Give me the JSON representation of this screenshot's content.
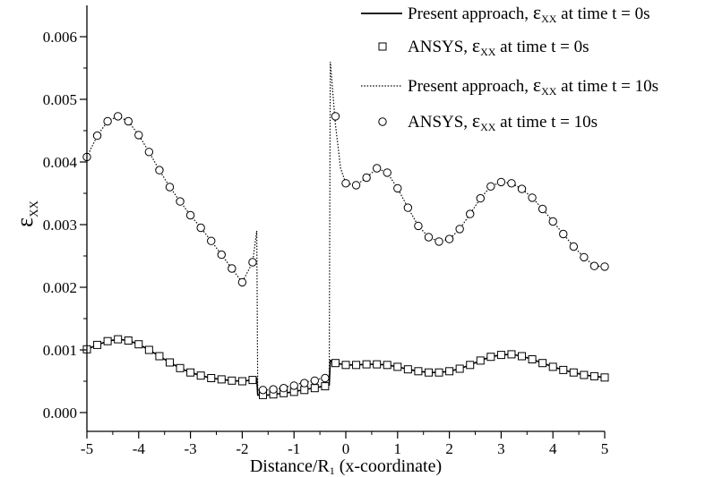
{
  "chart_data": {
    "type": "line",
    "xlabel": "Distance/R",
    "xlabel_sub": "1",
    "xlabel_suffix": " (x-coordinate)",
    "ylabel_symbol": "ε",
    "ylabel_sub": "XX",
    "xlim": [
      -5,
      5
    ],
    "ylim": [
      -0.0003,
      0.0065
    ],
    "xticks": [
      "-5",
      "-4",
      "-3",
      "-2",
      "-1",
      "0",
      "1",
      "2",
      "3",
      "4",
      "5"
    ],
    "yticks": [
      "0.000",
      "0.001",
      "0.002",
      "0.003",
      "0.004",
      "0.005",
      "0.006"
    ],
    "legend_position": "top-right",
    "series": [
      {
        "name_prefix": "Present approach, ",
        "name_sub": "XX",
        "name_suffix": " at time t = 0s",
        "style": "solid",
        "points": [
          [
            -5,
            0.00101
          ],
          [
            -4.8,
            0.00108
          ],
          [
            -4.6,
            0.00114
          ],
          [
            -4.4,
            0.00117
          ],
          [
            -4.2,
            0.00115
          ],
          [
            -4.0,
            0.00109
          ],
          [
            -3.8,
            0.001
          ],
          [
            -3.6,
            0.0009
          ],
          [
            -3.4,
            0.0008
          ],
          [
            -3.2,
            0.00071
          ],
          [
            -3.0,
            0.00064
          ],
          [
            -2.8,
            0.00059
          ],
          [
            -2.6,
            0.00055
          ],
          [
            -2.4,
            0.00053
          ],
          [
            -2.2,
            0.00051
          ],
          [
            -2.0,
            0.0005
          ],
          [
            -1.8,
            0.00052
          ],
          [
            -1.72,
            0.00055
          ],
          [
            -1.7,
            0.00028
          ],
          [
            -1.5,
            0.00028
          ],
          [
            -1.3,
            0.0003
          ],
          [
            -1.1,
            0.00032
          ],
          [
            -0.9,
            0.00035
          ],
          [
            -0.7,
            0.00038
          ],
          [
            -0.5,
            0.00041
          ],
          [
            -0.32,
            0.00044
          ],
          [
            -0.3,
            0.00083
          ],
          [
            -0.2,
            0.00079
          ],
          [
            0.0,
            0.00076
          ],
          [
            0.2,
            0.00076
          ],
          [
            0.4,
            0.00077
          ],
          [
            0.6,
            0.00077
          ],
          [
            0.8,
            0.00076
          ],
          [
            1.0,
            0.00073
          ],
          [
            1.2,
            0.00069
          ],
          [
            1.4,
            0.00066
          ],
          [
            1.6,
            0.00064
          ],
          [
            1.8,
            0.00064
          ],
          [
            2.0,
            0.00066
          ],
          [
            2.2,
            0.0007
          ],
          [
            2.4,
            0.00076
          ],
          [
            2.6,
            0.00083
          ],
          [
            2.8,
            0.00089
          ],
          [
            3.0,
            0.00092
          ],
          [
            3.2,
            0.00093
          ],
          [
            3.4,
            0.0009
          ],
          [
            3.6,
            0.00085
          ],
          [
            3.8,
            0.00079
          ],
          [
            4.0,
            0.00073
          ],
          [
            4.2,
            0.00068
          ],
          [
            4.4,
            0.00064
          ],
          [
            4.6,
            0.0006
          ],
          [
            4.8,
            0.00058
          ],
          [
            5.0,
            0.00056
          ]
        ]
      },
      {
        "name_prefix": "ANSYS, ",
        "name_sub": "XX",
        "name_suffix": " at time t = 0s",
        "style": "square",
        "points": [
          [
            -5,
            0.00101
          ],
          [
            -4.8,
            0.00108
          ],
          [
            -4.6,
            0.00114
          ],
          [
            -4.4,
            0.00117
          ],
          [
            -4.2,
            0.00115
          ],
          [
            -4.0,
            0.00109
          ],
          [
            -3.8,
            0.001
          ],
          [
            -3.6,
            0.0009
          ],
          [
            -3.4,
            0.0008
          ],
          [
            -3.2,
            0.00071
          ],
          [
            -3.0,
            0.00064
          ],
          [
            -2.8,
            0.00059
          ],
          [
            -2.6,
            0.00055
          ],
          [
            -2.4,
            0.00053
          ],
          [
            -2.2,
            0.00051
          ],
          [
            -2.0,
            0.0005
          ],
          [
            -1.8,
            0.00052
          ],
          [
            -1.6,
            0.00028
          ],
          [
            -1.4,
            0.00029
          ],
          [
            -1.2,
            0.00031
          ],
          [
            -1.0,
            0.00033
          ],
          [
            -0.8,
            0.00036
          ],
          [
            -0.6,
            0.00039
          ],
          [
            -0.4,
            0.00042
          ],
          [
            -0.2,
            0.00079
          ],
          [
            0.0,
            0.00076
          ],
          [
            0.2,
            0.00076
          ],
          [
            0.4,
            0.00077
          ],
          [
            0.6,
            0.00077
          ],
          [
            0.8,
            0.00076
          ],
          [
            1.0,
            0.00073
          ],
          [
            1.2,
            0.00069
          ],
          [
            1.4,
            0.00066
          ],
          [
            1.6,
            0.00064
          ],
          [
            1.8,
            0.00064
          ],
          [
            2.0,
            0.00066
          ],
          [
            2.2,
            0.0007
          ],
          [
            2.4,
            0.00076
          ],
          [
            2.6,
            0.00083
          ],
          [
            2.8,
            0.00089
          ],
          [
            3.0,
            0.00092
          ],
          [
            3.2,
            0.00093
          ],
          [
            3.4,
            0.0009
          ],
          [
            3.6,
            0.00085
          ],
          [
            3.8,
            0.00079
          ],
          [
            4.0,
            0.00073
          ],
          [
            4.2,
            0.00068
          ],
          [
            4.4,
            0.00064
          ],
          [
            4.6,
            0.0006
          ],
          [
            4.8,
            0.00058
          ],
          [
            5.0,
            0.00056
          ]
        ]
      },
      {
        "name_prefix": "Present approach, ",
        "name_sub": "XX",
        "name_suffix": " at time t = 10s",
        "style": "dotted",
        "points": [
          [
            -5,
            0.00408
          ],
          [
            -4.8,
            0.00442
          ],
          [
            -4.6,
            0.00465
          ],
          [
            -4.4,
            0.00473
          ],
          [
            -4.2,
            0.00465
          ],
          [
            -4.0,
            0.00443
          ],
          [
            -3.8,
            0.00416
          ],
          [
            -3.6,
            0.00387
          ],
          [
            -3.4,
            0.0036
          ],
          [
            -3.2,
            0.00337
          ],
          [
            -3.0,
            0.00315
          ],
          [
            -2.8,
            0.00295
          ],
          [
            -2.6,
            0.00274
          ],
          [
            -2.4,
            0.00252
          ],
          [
            -2.2,
            0.0023
          ],
          [
            -2.0,
            0.00208
          ],
          [
            -1.8,
            0.0024
          ],
          [
            -1.72,
            0.0029
          ],
          [
            -1.7,
            0.00036
          ],
          [
            -1.5,
            0.00036
          ],
          [
            -1.3,
            0.00038
          ],
          [
            -1.1,
            0.00042
          ],
          [
            -0.9,
            0.00046
          ],
          [
            -0.7,
            0.0005
          ],
          [
            -0.5,
            0.00054
          ],
          [
            -0.32,
            0.00058
          ],
          [
            -0.3,
            0.0056
          ],
          [
            -0.2,
            0.0046
          ],
          [
            -0.1,
            0.0039
          ],
          [
            0.0,
            0.00366
          ],
          [
            0.2,
            0.00363
          ],
          [
            0.4,
            0.00375
          ],
          [
            0.6,
            0.0039
          ],
          [
            0.8,
            0.00383
          ],
          [
            1.0,
            0.00358
          ],
          [
            1.2,
            0.00327
          ],
          [
            1.4,
            0.00298
          ],
          [
            1.6,
            0.0028
          ],
          [
            1.8,
            0.00273
          ],
          [
            2.0,
            0.00277
          ],
          [
            2.2,
            0.00293
          ],
          [
            2.4,
            0.00317
          ],
          [
            2.6,
            0.00342
          ],
          [
            2.8,
            0.00361
          ],
          [
            3.0,
            0.00368
          ],
          [
            3.2,
            0.00366
          ],
          [
            3.4,
            0.00357
          ],
          [
            3.6,
            0.00343
          ],
          [
            3.8,
            0.00325
          ],
          [
            4.0,
            0.00305
          ],
          [
            4.2,
            0.00285
          ],
          [
            4.4,
            0.00265
          ],
          [
            4.6,
            0.00248
          ],
          [
            4.8,
            0.00234
          ],
          [
            5.0,
            0.00233
          ]
        ]
      },
      {
        "name_prefix": "ANSYS, ",
        "name_sub": "XX",
        "name_suffix": " at time t = 10s",
        "style": "circle",
        "points": [
          [
            -5,
            0.00408
          ],
          [
            -4.8,
            0.00442
          ],
          [
            -4.6,
            0.00465
          ],
          [
            -4.4,
            0.00473
          ],
          [
            -4.2,
            0.00465
          ],
          [
            -4.0,
            0.00443
          ],
          [
            -3.8,
            0.00416
          ],
          [
            -3.6,
            0.00387
          ],
          [
            -3.4,
            0.0036
          ],
          [
            -3.2,
            0.00337
          ],
          [
            -3.0,
            0.00315
          ],
          [
            -2.8,
            0.00295
          ],
          [
            -2.6,
            0.00274
          ],
          [
            -2.4,
            0.00252
          ],
          [
            -2.2,
            0.0023
          ],
          [
            -2.0,
            0.00208
          ],
          [
            -1.8,
            0.0024
          ],
          [
            -1.6,
            0.00036
          ],
          [
            -1.4,
            0.00037
          ],
          [
            -1.2,
            0.00039
          ],
          [
            -1.0,
            0.00043
          ],
          [
            -0.8,
            0.00047
          ],
          [
            -0.6,
            0.00051
          ],
          [
            -0.4,
            0.00055
          ],
          [
            -0.2,
            0.00473
          ],
          [
            0.0,
            0.00366
          ],
          [
            0.2,
            0.00363
          ],
          [
            0.4,
            0.00375
          ],
          [
            0.6,
            0.0039
          ],
          [
            0.8,
            0.00383
          ],
          [
            1.0,
            0.00358
          ],
          [
            1.2,
            0.00327
          ],
          [
            1.4,
            0.00298
          ],
          [
            1.6,
            0.0028
          ],
          [
            1.8,
            0.00273
          ],
          [
            2.0,
            0.00277
          ],
          [
            2.2,
            0.00293
          ],
          [
            2.4,
            0.00317
          ],
          [
            2.6,
            0.00342
          ],
          [
            2.8,
            0.00361
          ],
          [
            3.0,
            0.00368
          ],
          [
            3.2,
            0.00366
          ],
          [
            3.4,
            0.00357
          ],
          [
            3.6,
            0.00343
          ],
          [
            3.8,
            0.00325
          ],
          [
            4.0,
            0.00305
          ],
          [
            4.2,
            0.00285
          ],
          [
            4.4,
            0.00265
          ],
          [
            4.6,
            0.00248
          ],
          [
            4.8,
            0.00234
          ],
          [
            5.0,
            0.00233
          ]
        ]
      }
    ]
  }
}
